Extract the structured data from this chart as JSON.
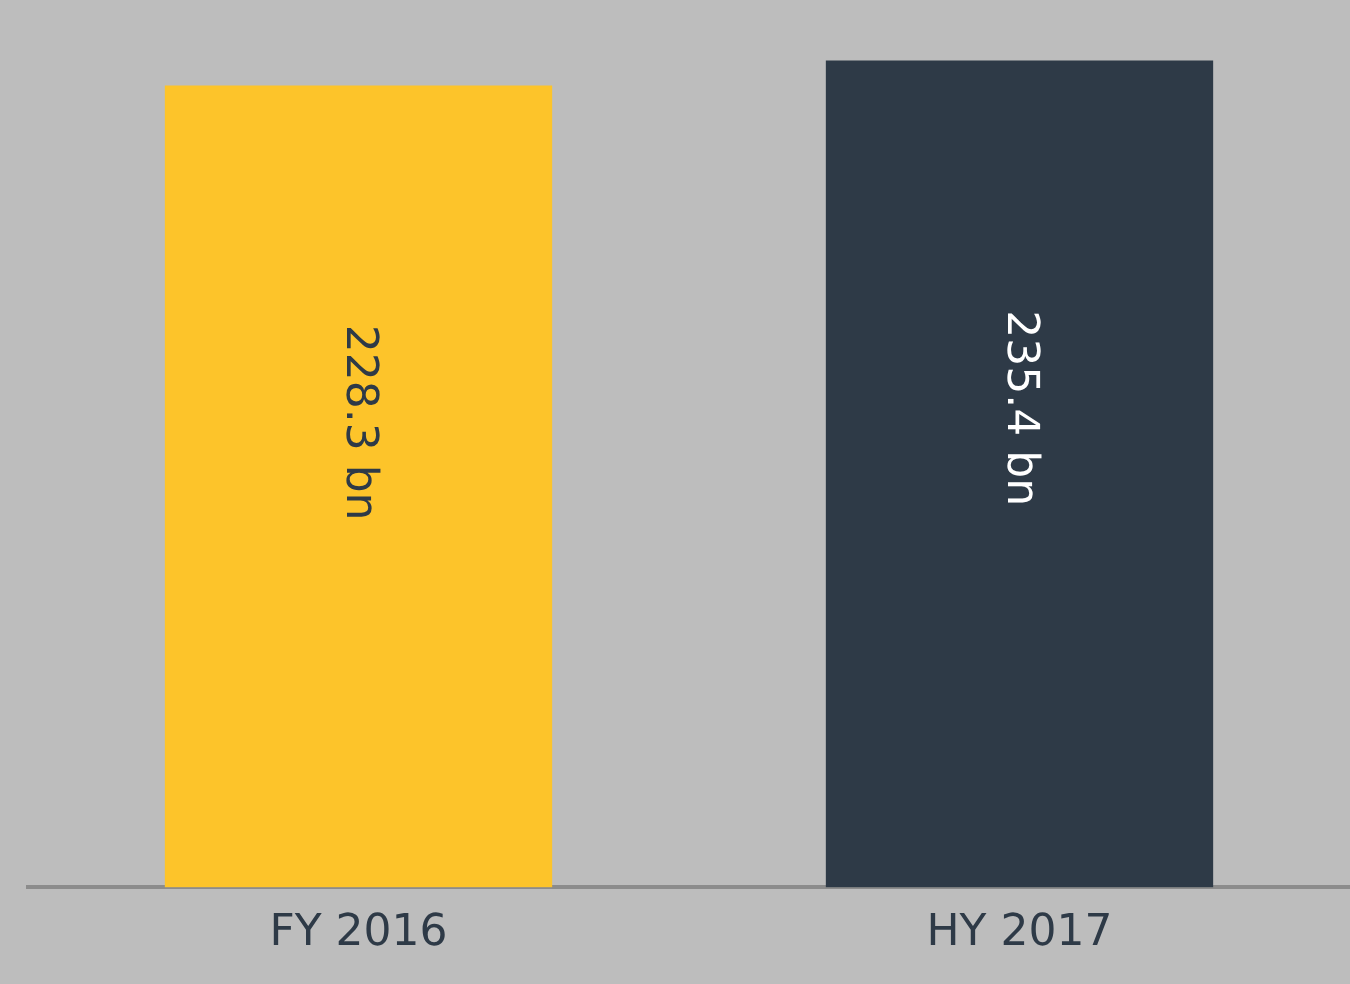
{
  "chart_data": {
    "type": "bar",
    "categories": [
      "FY 2016",
      "HY 2017"
    ],
    "values": [
      228.3,
      235.4
    ],
    "colors": [
      "#fdc42a",
      "#2e3a47"
    ],
    "value_labels": [
      "228.3 bn",
      "235.4 bn"
    ],
    "tick_labels": "x",
    "grid": false,
    "legend": false
  }
}
